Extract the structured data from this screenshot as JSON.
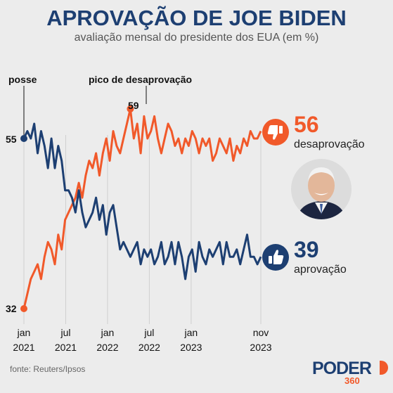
{
  "header": {
    "title": "APROVAÇÃO DE JOE BIDEN",
    "subtitle": "avaliação mensal do presidente dos EUA (em %)"
  },
  "source": "fonte: Reuters/Ipsos",
  "logo": {
    "name": "PODER",
    "sub": "360"
  },
  "colors": {
    "approval": "#1d3f72",
    "disapproval": "#f1592a",
    "grid": "#cfcfcf"
  },
  "icons": {
    "approval": "thumbs-up-icon",
    "disapproval": "thumbs-down-icon"
  },
  "chart_data": {
    "type": "line",
    "x_ticks": [
      {
        "t": 0,
        "month": "jan",
        "year": "2021"
      },
      {
        "t": 6,
        "month": "jul",
        "year": "2021"
      },
      {
        "t": 12,
        "month": "jan",
        "year": "2022"
      },
      {
        "t": 18,
        "month": "jul",
        "year": "2022"
      },
      {
        "t": 24,
        "month": "jan",
        "year": "2023"
      },
      {
        "t": 34,
        "month": "nov",
        "year": "2023"
      }
    ],
    "ylim": [
      30,
      58
    ],
    "series": [
      {
        "name": "aprovação",
        "end_value": "39",
        "values": [
          55,
          56,
          55,
          57,
          53,
          56,
          54,
          51,
          55,
          51,
          54,
          52,
          48,
          48,
          47,
          45,
          48,
          45,
          43,
          44,
          45,
          47,
          44,
          46,
          42,
          45,
          46,
          43,
          40,
          41,
          40,
          39,
          40,
          41,
          38,
          40,
          39,
          40,
          38,
          39,
          41,
          38,
          39,
          41,
          38,
          41,
          39,
          36,
          39,
          40,
          37,
          41,
          39,
          38,
          40,
          39,
          40,
          41,
          38,
          41,
          39,
          39,
          40,
          38,
          40,
          42,
          39,
          39,
          38,
          39
        ]
      },
      {
        "name": "desaprovação",
        "end_value": "56",
        "values": [
          32,
          34,
          36,
          37,
          38,
          36,
          39,
          41,
          40,
          38,
          42,
          40,
          44,
          45,
          46,
          47,
          49,
          47,
          50,
          52,
          51,
          53,
          50,
          53,
          55,
          52,
          56,
          54,
          53,
          55,
          57,
          59,
          55,
          57,
          53,
          58,
          55,
          56,
          58,
          55,
          53,
          55,
          57,
          56,
          54,
          55,
          53,
          55,
          54,
          56,
          55,
          53,
          55,
          54,
          55,
          52,
          53,
          55,
          54,
          53,
          55,
          52,
          54,
          53,
          55,
          54,
          56,
          55,
          55,
          56
        ]
      }
    ],
    "annotations": [
      {
        "label": "posse",
        "value": "55"
      },
      {
        "label": "pico de desaprovação",
        "value": "59"
      },
      {
        "label": "start_disapproval",
        "value": "32"
      }
    ]
  }
}
